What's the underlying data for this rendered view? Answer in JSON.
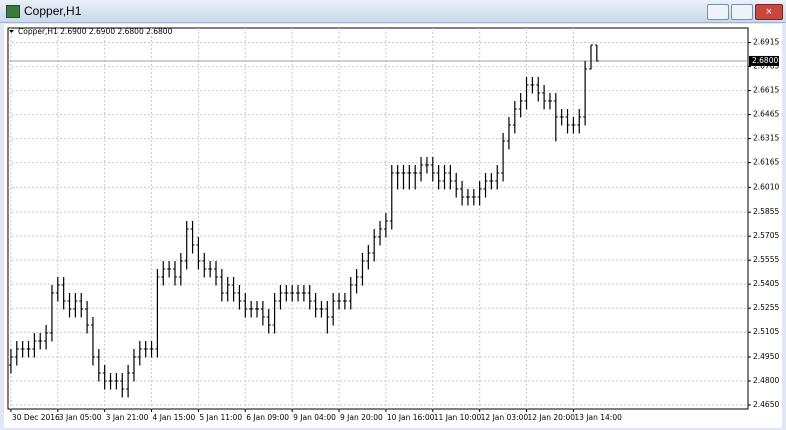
{
  "window": {
    "title": "Copper,H1"
  },
  "chart_data": {
    "type": "ohlc",
    "subtitle": "Copper,H1  2.6900 2.6900 2.6800 2.6800",
    "color": "#000000",
    "grid": true,
    "ylim": [
      2.4625,
      2.7006
    ],
    "xlim": [
      -0.5,
      125.8
    ],
    "yticks": [
      {
        "value": 2.465,
        "label": "2.4650"
      },
      {
        "value": 2.48,
        "label": "2.4800"
      },
      {
        "value": 2.495,
        "label": "2.4950"
      },
      {
        "value": 2.5105,
        "label": "2.5105"
      },
      {
        "value": 2.5255,
        "label": "2.5255"
      },
      {
        "value": 2.5405,
        "label": "2.5405"
      },
      {
        "value": 2.5555,
        "label": "2.5555"
      },
      {
        "value": 2.5705,
        "label": "2.5705"
      },
      {
        "value": 2.5855,
        "label": "2.5855"
      },
      {
        "value": 2.601,
        "label": "2.6010"
      },
      {
        "value": 2.6165,
        "label": "2.6165"
      },
      {
        "value": 2.6315,
        "label": "2.6315"
      },
      {
        "value": 2.6465,
        "label": "2.6465"
      },
      {
        "value": 2.6615,
        "label": "2.6615"
      },
      {
        "value": 2.6765,
        "label": "2.6765"
      },
      {
        "value": 2.6915,
        "label": "2.6915"
      }
    ],
    "xticks": [
      {
        "value": 0,
        "label": "30 Dec 2016"
      },
      {
        "value": 8,
        "label": "3 Jan 05:00"
      },
      {
        "value": 16,
        "label": "3 Jan 21:00"
      },
      {
        "value": 24,
        "label": "4 Jan 15:00"
      },
      {
        "value": 32,
        "label": "5 Jan 11:00"
      },
      {
        "value": 40,
        "label": "6 Jan 09:00"
      },
      {
        "value": 48,
        "label": "9 Jan 04:00"
      },
      {
        "value": 56,
        "label": "9 Jan 20:00"
      },
      {
        "value": 64,
        "label": "10 Jan 16:00"
      },
      {
        "value": 72,
        "label": "11 Jan 10:00"
      },
      {
        "value": 80,
        "label": "12 Jan 03:00"
      },
      {
        "value": 88,
        "label": "12 Jan 20:00"
      },
      {
        "value": 96,
        "label": "13 Jan 14:00"
      }
    ],
    "current_price": {
      "value": 2.68,
      "label": "2.6800"
    },
    "bars": [
      [
        2.49,
        2.5,
        2.485,
        2.495
      ],
      [
        2.495,
        2.505,
        2.49,
        2.5
      ],
      [
        2.5,
        2.505,
        2.495,
        2.5
      ],
      [
        2.5,
        2.505,
        2.495,
        2.5
      ],
      [
        2.5,
        2.51,
        2.495,
        2.505
      ],
      [
        2.505,
        2.51,
        2.5,
        2.505
      ],
      [
        2.505,
        2.515,
        2.5,
        2.51
      ],
      [
        2.51,
        2.54,
        2.505,
        2.535
      ],
      [
        2.535,
        2.545,
        2.53,
        2.54
      ],
      [
        2.54,
        2.545,
        2.525,
        2.53
      ],
      [
        2.53,
        2.535,
        2.52,
        2.525
      ],
      [
        2.525,
        2.535,
        2.52,
        2.53
      ],
      [
        2.53,
        2.535,
        2.52,
        2.525
      ],
      [
        2.525,
        2.53,
        2.51,
        2.515
      ],
      [
        2.515,
        2.52,
        2.49,
        2.495
      ],
      [
        2.495,
        2.5,
        2.48,
        2.485
      ],
      [
        2.485,
        2.49,
        2.475,
        2.48
      ],
      [
        2.48,
        2.485,
        2.475,
        2.48
      ],
      [
        2.48,
        2.485,
        2.475,
        2.48
      ],
      [
        2.48,
        2.485,
        2.47,
        2.475
      ],
      [
        2.475,
        2.49,
        2.47,
        2.485
      ],
      [
        2.485,
        2.5,
        2.48,
        2.495
      ],
      [
        2.495,
        2.505,
        2.49,
        2.5
      ],
      [
        2.5,
        2.505,
        2.495,
        2.5
      ],
      [
        2.5,
        2.505,
        2.495,
        2.5
      ],
      [
        2.5,
        2.55,
        2.495,
        2.545
      ],
      [
        2.545,
        2.555,
        2.54,
        2.55
      ],
      [
        2.55,
        2.555,
        2.545,
        2.55
      ],
      [
        2.55,
        2.555,
        2.54,
        2.545
      ],
      [
        2.545,
        2.56,
        2.54,
        2.555
      ],
      [
        2.555,
        2.58,
        2.55,
        2.575
      ],
      [
        2.575,
        2.58,
        2.56,
        2.565
      ],
      [
        2.565,
        2.57,
        2.55,
        2.555
      ],
      [
        2.555,
        2.56,
        2.545,
        2.55
      ],
      [
        2.55,
        2.555,
        2.545,
        2.55
      ],
      [
        2.55,
        2.555,
        2.54,
        2.545
      ],
      [
        2.545,
        2.55,
        2.53,
        2.535
      ],
      [
        2.535,
        2.545,
        2.53,
        2.54
      ],
      [
        2.54,
        2.545,
        2.53,
        2.535
      ],
      [
        2.535,
        2.54,
        2.525,
        2.53
      ],
      [
        2.53,
        2.535,
        2.52,
        2.525
      ],
      [
        2.525,
        2.53,
        2.52,
        2.525
      ],
      [
        2.525,
        2.53,
        2.52,
        2.525
      ],
      [
        2.525,
        2.53,
        2.515,
        2.52
      ],
      [
        2.52,
        2.525,
        2.51,
        2.515
      ],
      [
        2.515,
        2.535,
        2.51,
        2.53
      ],
      [
        2.53,
        2.54,
        2.525,
        2.535
      ],
      [
        2.535,
        2.54,
        2.53,
        2.535
      ],
      [
        2.535,
        2.54,
        2.53,
        2.535
      ],
      [
        2.535,
        2.54,
        2.53,
        2.535
      ],
      [
        2.535,
        2.54,
        2.53,
        2.535
      ],
      [
        2.535,
        2.54,
        2.525,
        2.53
      ],
      [
        2.53,
        2.535,
        2.52,
        2.525
      ],
      [
        2.525,
        2.53,
        2.52,
        2.525
      ],
      [
        2.525,
        2.53,
        2.51,
        2.52
      ],
      [
        2.52,
        2.535,
        2.515,
        2.53
      ],
      [
        2.53,
        2.535,
        2.525,
        2.53
      ],
      [
        2.53,
        2.535,
        2.525,
        2.53
      ],
      [
        2.53,
        2.545,
        2.525,
        2.54
      ],
      [
        2.54,
        2.55,
        2.535,
        2.545
      ],
      [
        2.545,
        2.56,
        2.54,
        2.555
      ],
      [
        2.555,
        2.565,
        2.55,
        2.56
      ],
      [
        2.56,
        2.575,
        2.555,
        2.57
      ],
      [
        2.57,
        2.58,
        2.565,
        2.575
      ],
      [
        2.575,
        2.585,
        2.57,
        2.58
      ],
      [
        2.58,
        2.615,
        2.575,
        2.61
      ],
      [
        2.61,
        2.615,
        2.6,
        2.61
      ],
      [
        2.61,
        2.615,
        2.6,
        2.61
      ],
      [
        2.61,
        2.615,
        2.6,
        2.61
      ],
      [
        2.61,
        2.615,
        2.6,
        2.61
      ],
      [
        2.61,
        2.62,
        2.605,
        2.615
      ],
      [
        2.615,
        2.62,
        2.61,
        2.615
      ],
      [
        2.615,
        2.62,
        2.605,
        2.61
      ],
      [
        2.61,
        2.615,
        2.6,
        2.605
      ],
      [
        2.605,
        2.615,
        2.6,
        2.61
      ],
      [
        2.61,
        2.615,
        2.6,
        2.605
      ],
      [
        2.605,
        2.61,
        2.595,
        2.6
      ],
      [
        2.6,
        2.605,
        2.59,
        2.595
      ],
      [
        2.595,
        2.6,
        2.59,
        2.595
      ],
      [
        2.595,
        2.6,
        2.59,
        2.595
      ],
      [
        2.595,
        2.605,
        2.59,
        2.6
      ],
      [
        2.6,
        2.61,
        2.595,
        2.605
      ],
      [
        2.605,
        2.61,
        2.6,
        2.605
      ],
      [
        2.605,
        2.615,
        2.6,
        2.61
      ],
      [
        2.61,
        2.635,
        2.605,
        2.63
      ],
      [
        2.63,
        2.645,
        2.625,
        2.64
      ],
      [
        2.64,
        2.655,
        2.635,
        2.65
      ],
      [
        2.65,
        2.66,
        2.645,
        2.655
      ],
      [
        2.655,
        2.67,
        2.65,
        2.665
      ],
      [
        2.665,
        2.67,
        2.66,
        2.665
      ],
      [
        2.665,
        2.67,
        2.655,
        2.66
      ],
      [
        2.66,
        2.665,
        2.65,
        2.655
      ],
      [
        2.655,
        2.66,
        2.65,
        2.655
      ],
      [
        2.655,
        2.66,
        2.63,
        2.645
      ],
      [
        2.645,
        2.65,
        2.64,
        2.645
      ],
      [
        2.645,
        2.65,
        2.635,
        2.64
      ],
      [
        2.64,
        2.645,
        2.635,
        2.64
      ],
      [
        2.64,
        2.65,
        2.635,
        2.645
      ],
      [
        2.645,
        2.68,
        2.64,
        2.675
      ],
      [
        2.675,
        2.69,
        2.675,
        2.69
      ],
      [
        2.69,
        2.69,
        2.68,
        2.68
      ]
    ]
  }
}
